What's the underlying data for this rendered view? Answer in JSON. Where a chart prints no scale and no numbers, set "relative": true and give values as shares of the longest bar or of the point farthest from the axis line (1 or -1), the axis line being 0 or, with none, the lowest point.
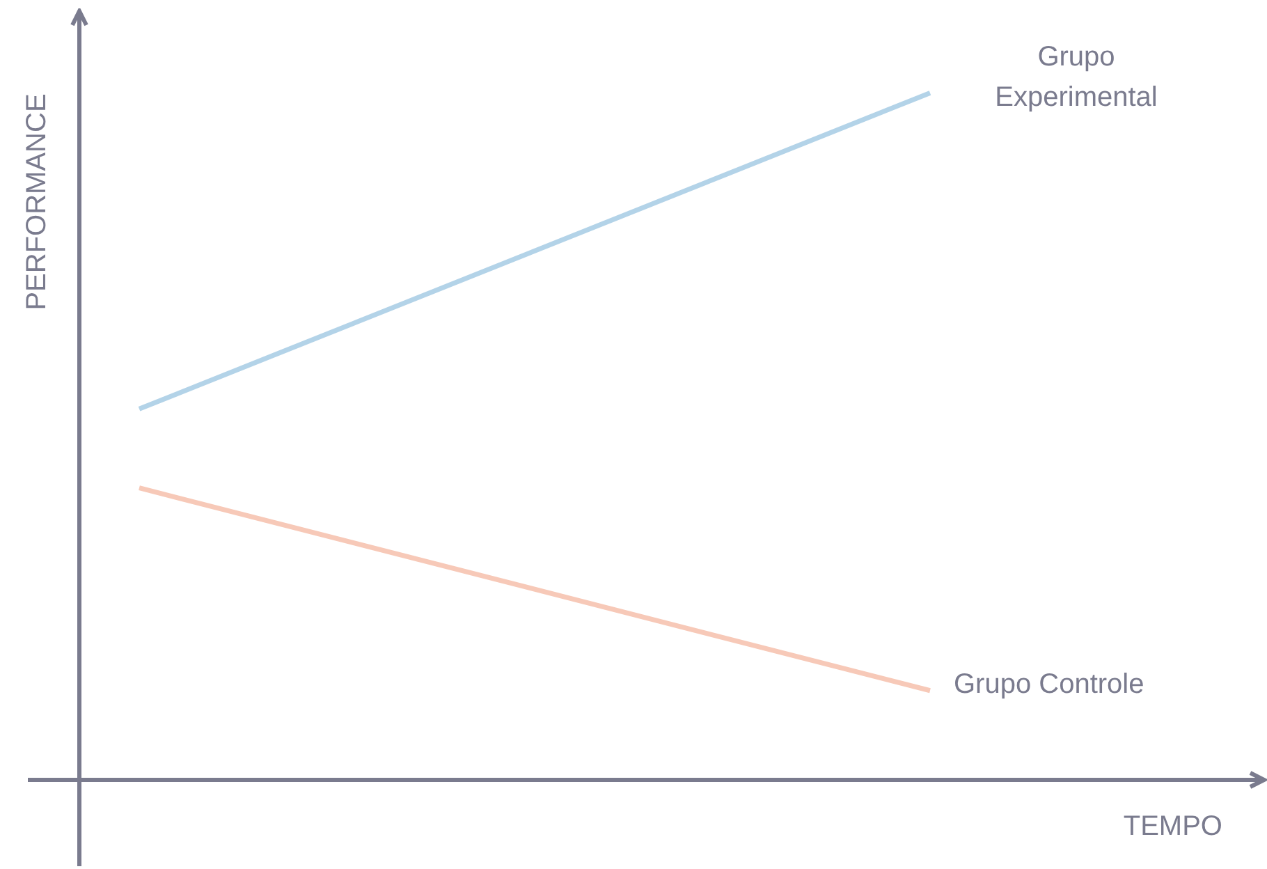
{
  "chart_data": {
    "type": "line",
    "relative": true,
    "xlabel": "TEMPO",
    "ylabel": "PERFORMANCE",
    "categories": [
      null,
      null
    ],
    "series": [
      {
        "name": "Grupo Experimental",
        "color": "#b3d3e8",
        "values": [
          0.54,
          1
        ]
      },
      {
        "name": "Grupo Controle",
        "color": "#f7c9b8",
        "values": [
          0.425,
          0.13
        ]
      }
    ],
    "legend": false,
    "marker": "none",
    "line_style": "solid"
  }
}
